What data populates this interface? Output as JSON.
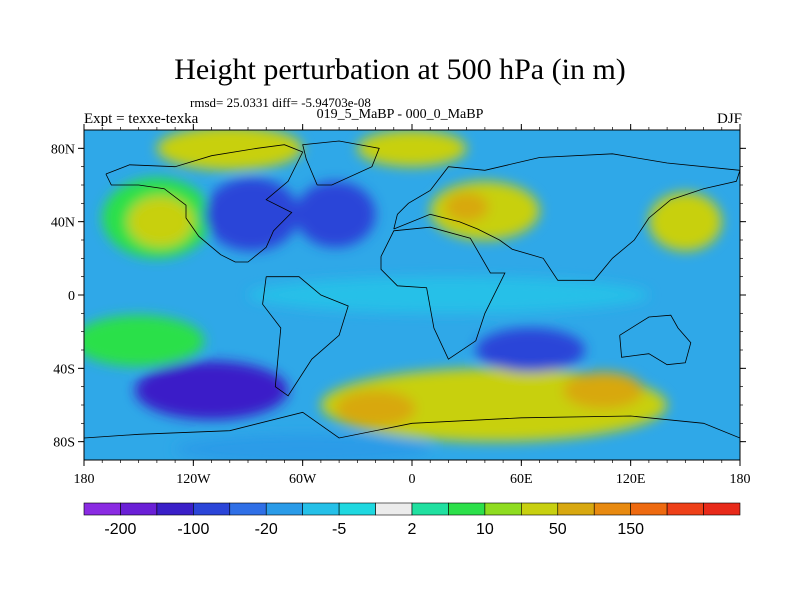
{
  "title": "Height perturbation at 500 hPa (in m)",
  "stats": "rmsd= 25.0331 diff= -5.94703e-08",
  "experiment": "Expt = texxe-texka",
  "subtitle": "019_5_MaBP - 000_0_MaBP",
  "season": "DJF",
  "axes": {
    "x_ticks": [
      {
        "value": -180,
        "label": "180"
      },
      {
        "value": -120,
        "label": "120W"
      },
      {
        "value": -60,
        "label": "60W"
      },
      {
        "value": 0,
        "label": "0"
      },
      {
        "value": 60,
        "label": "60E"
      },
      {
        "value": 120,
        "label": "120E"
      },
      {
        "value": 180,
        "label": "180"
      }
    ],
    "y_ticks": [
      {
        "value": 80,
        "label": "80N"
      },
      {
        "value": 40,
        "label": "40N"
      },
      {
        "value": 0,
        "label": "0"
      },
      {
        "value": -40,
        "label": "40S"
      },
      {
        "value": -80,
        "label": "80S"
      }
    ],
    "lon_range": [
      -180,
      180
    ],
    "lat_range": [
      -90,
      90
    ]
  },
  "colorbar": {
    "colors": [
      "#8a2be2",
      "#6a1fd6",
      "#3a1fc8",
      "#2b45d8",
      "#2f6fe6",
      "#2a9be8",
      "#25c0e8",
      "#1fd8e0",
      "#ececec",
      "#20e0a0",
      "#2ce04a",
      "#8fdc20",
      "#c8d010",
      "#d8a810",
      "#e88a10",
      "#ee6a10",
      "#ee4018",
      "#e82a1a"
    ],
    "labels": [
      {
        "after_box": 1,
        "text": "-200"
      },
      {
        "after_box": 3,
        "text": "-100"
      },
      {
        "after_box": 5,
        "text": "-20"
      },
      {
        "after_box": 7,
        "text": "-5"
      },
      {
        "after_box": 9,
        "text": "2"
      },
      {
        "after_box": 11,
        "text": "10"
      },
      {
        "after_box": 13,
        "text": "50"
      },
      {
        "after_box": 15,
        "text": "150"
      }
    ]
  },
  "field": {
    "background_color": "#2fa8e8",
    "regions": [
      {
        "name": "north-pacific-high",
        "lon": -140,
        "lat": 42,
        "rx": 30,
        "ry": 22,
        "color": "#2ce04a"
      },
      {
        "name": "north-pacific-high-core",
        "lon": -138,
        "lat": 40,
        "rx": 18,
        "ry": 14,
        "color": "#c8d010"
      },
      {
        "name": "north-america-low",
        "lon": -88,
        "lat": 44,
        "rx": 26,
        "ry": 20,
        "color": "#2b45d8"
      },
      {
        "name": "north-atlantic-low",
        "lon": -42,
        "lat": 44,
        "rx": 22,
        "ry": 18,
        "color": "#2b45d8"
      },
      {
        "name": "arctic-high-west",
        "lon": -100,
        "lat": 80,
        "rx": 40,
        "ry": 12,
        "color": "#c8d010"
      },
      {
        "name": "arctic-high-east",
        "lon": 0,
        "lat": 80,
        "rx": 30,
        "ry": 10,
        "color": "#c8d010"
      },
      {
        "name": "eurasia-high",
        "lon": 40,
        "lat": 46,
        "rx": 30,
        "ry": 16,
        "color": "#c8d010"
      },
      {
        "name": "eurasia-high-core",
        "lon": 30,
        "lat": 48,
        "rx": 12,
        "ry": 8,
        "color": "#d8a810"
      },
      {
        "name": "north-west-pacific-high",
        "lon": 150,
        "lat": 40,
        "rx": 20,
        "ry": 16,
        "color": "#c8d010"
      },
      {
        "name": "tropical-band",
        "lon": 20,
        "lat": 0,
        "rx": 110,
        "ry": 10,
        "color": "#25c0e8"
      },
      {
        "name": "south-pacific-high",
        "lon": -150,
        "lat": -25,
        "rx": 36,
        "ry": 14,
        "color": "#2ce04a"
      },
      {
        "name": "south-pacific-low",
        "lon": -110,
        "lat": -52,
        "rx": 42,
        "ry": 16,
        "color": "#3a1fc8"
      },
      {
        "name": "southern-ocean-high",
        "lon": 45,
        "lat": -60,
        "rx": 95,
        "ry": 20,
        "color": "#c8d010"
      },
      {
        "name": "southern-ocean-high-core-a",
        "lon": -20,
        "lat": -62,
        "rx": 22,
        "ry": 10,
        "color": "#d8a810"
      },
      {
        "name": "southern-ocean-high-core-b",
        "lon": 105,
        "lat": -52,
        "rx": 22,
        "ry": 10,
        "color": "#d8a810"
      },
      {
        "name": "indian-ocean-low",
        "lon": 65,
        "lat": -30,
        "rx": 30,
        "ry": 12,
        "color": "#2b45d8"
      },
      {
        "name": "antarctica-low",
        "lon": -60,
        "lat": -84,
        "rx": 70,
        "ry": 8,
        "color": "#2a9be8"
      }
    ]
  },
  "coastlines": [
    {
      "name": "north-america",
      "points": [
        [
          -168,
          66
        ],
        [
          -155,
          71
        ],
        [
          -130,
          70
        ],
        [
          -110,
          76
        ],
        [
          -85,
          80
        ],
        [
          -70,
          82
        ],
        [
          -60,
          78
        ],
        [
          -68,
          62
        ],
        [
          -80,
          52
        ],
        [
          -66,
          45
        ],
        [
          -76,
          35
        ],
        [
          -80,
          26
        ],
        [
          -90,
          18
        ],
        [
          -97,
          18
        ],
        [
          -105,
          22
        ],
        [
          -117,
          32
        ],
        [
          -124,
          42
        ],
        [
          -124,
          49
        ],
        [
          -136,
          58
        ],
        [
          -150,
          60
        ],
        [
          -165,
          60
        ],
        [
          -168,
          66
        ]
      ]
    },
    {
      "name": "greenland",
      "points": [
        [
          -52,
          60
        ],
        [
          -44,
          60
        ],
        [
          -22,
          70
        ],
        [
          -18,
          80
        ],
        [
          -40,
          84
        ],
        [
          -60,
          82
        ],
        [
          -58,
          74
        ],
        [
          -52,
          60
        ]
      ]
    },
    {
      "name": "south-america",
      "points": [
        [
          -80,
          10
        ],
        [
          -62,
          10
        ],
        [
          -50,
          0
        ],
        [
          -35,
          -6
        ],
        [
          -40,
          -22
        ],
        [
          -55,
          -35
        ],
        [
          -68,
          -55
        ],
        [
          -75,
          -50
        ],
        [
          -72,
          -18
        ],
        [
          -82,
          -5
        ],
        [
          -80,
          10
        ]
      ]
    },
    {
      "name": "eurasia",
      "points": [
        [
          -10,
          36
        ],
        [
          -8,
          44
        ],
        [
          -2,
          50
        ],
        [
          10,
          57
        ],
        [
          20,
          70
        ],
        [
          40,
          68
        ],
        [
          70,
          75
        ],
        [
          110,
          77
        ],
        [
          140,
          72
        ],
        [
          180,
          68
        ],
        [
          178,
          62
        ],
        [
          160,
          58
        ],
        [
          142,
          52
        ],
        [
          130,
          42
        ],
        [
          122,
          30
        ],
        [
          110,
          20
        ],
        [
          100,
          8
        ],
        [
          80,
          8
        ],
        [
          72,
          20
        ],
        [
          55,
          25
        ],
        [
          48,
          30
        ],
        [
          36,
          36
        ],
        [
          26,
          40
        ],
        [
          10,
          44
        ],
        [
          -10,
          36
        ]
      ]
    },
    {
      "name": "africa",
      "points": [
        [
          -17,
          21
        ],
        [
          -10,
          35
        ],
        [
          10,
          37
        ],
        [
          32,
          31
        ],
        [
          43,
          12
        ],
        [
          51,
          12
        ],
        [
          40,
          -10
        ],
        [
          35,
          -25
        ],
        [
          20,
          -35
        ],
        [
          12,
          -18
        ],
        [
          8,
          4
        ],
        [
          -8,
          5
        ],
        [
          -17,
          14
        ],
        [
          -17,
          21
        ]
      ]
    },
    {
      "name": "australia",
      "points": [
        [
          114,
          -22
        ],
        [
          130,
          -12
        ],
        [
          142,
          -11
        ],
        [
          146,
          -18
        ],
        [
          153,
          -26
        ],
        [
          150,
          -37
        ],
        [
          140,
          -38
        ],
        [
          130,
          -32
        ],
        [
          115,
          -34
        ],
        [
          114,
          -22
        ]
      ]
    },
    {
      "name": "antarctica",
      "points": [
        [
          -180,
          -78
        ],
        [
          -150,
          -76
        ],
        [
          -100,
          -74
        ],
        [
          -60,
          -64
        ],
        [
          -40,
          -78
        ],
        [
          0,
          -70
        ],
        [
          60,
          -67
        ],
        [
          120,
          -66
        ],
        [
          160,
          -70
        ],
        [
          180,
          -78
        ]
      ]
    }
  ]
}
